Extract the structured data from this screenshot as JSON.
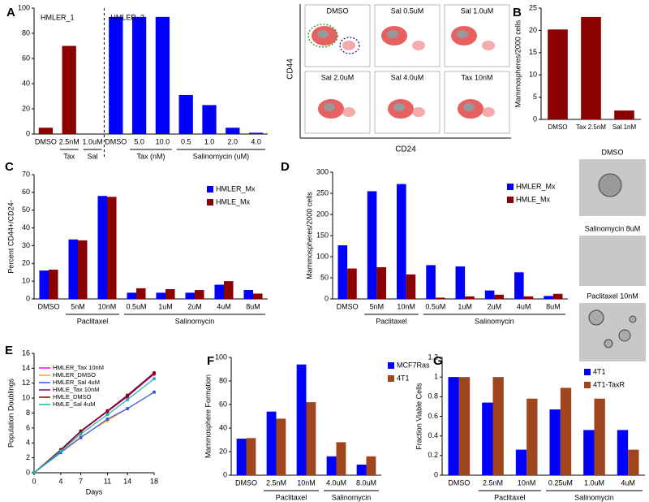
{
  "chart_data": [
    {
      "type": "bar",
      "panel": "A",
      "categories": [
        "DMSO",
        "2.5nM",
        "1.0uM",
        "DMSO",
        "5.0",
        "10.0",
        "0.5",
        "1.0",
        "2.0",
        "4.0"
      ],
      "values": [
        5,
        70,
        0,
        93,
        93,
        93,
        31,
        23,
        5,
        1
      ],
      "colors": [
        "#8b0000",
        "#8b0000",
        "#8b0000",
        "#0000ff",
        "#0000ff",
        "#0000ff",
        "#0000ff",
        "#0000ff",
        "#0000ff",
        "#0000ff"
      ],
      "ylim": [
        0,
        100
      ],
      "yticks": [
        0,
        20,
        40,
        60,
        80,
        100
      ],
      "sections": [
        {
          "label": "HMLER_1",
          "start": 0,
          "end": 2
        },
        {
          "label": "HMLER_2",
          "start": 3,
          "end": 9
        }
      ],
      "groups": [
        {
          "label": "Tax",
          "start": 1,
          "end": 1
        },
        {
          "label": "Sal",
          "start": 2,
          "end": 2
        },
        {
          "label": "Tax (nM)",
          "start": 4,
          "end": 5
        },
        {
          "label": "Salinomycin (uM)",
          "start": 6,
          "end": 9
        }
      ]
    },
    {
      "type": "bar",
      "panel": "B",
      "ylabel": "Mammospheres/2000 cells",
      "categories": [
        "DMSO",
        "Tax 2.5nM",
        "Sal 1nM"
      ],
      "values": [
        20.2,
        23,
        2
      ],
      "color": "#8b0000",
      "ylim": [
        0,
        25
      ],
      "yticks": [
        0,
        5,
        10,
        15,
        20,
        25
      ]
    },
    {
      "type": "bar",
      "panel": "C",
      "ylabel": "Percent CD44+/CD24-",
      "categories": [
        "DMSO",
        "5nM",
        "10nM",
        "0.5uM",
        "1uM",
        "2uM",
        "4uM",
        "8uM"
      ],
      "series": [
        {
          "name": "HMLER_Mx",
          "color": "#0000ff",
          "values": [
            16,
            33.5,
            58,
            3.5,
            3.5,
            3.5,
            8,
            5
          ]
        },
        {
          "name": "HMLE_Mx",
          "color": "#8b0000",
          "values": [
            16.5,
            33,
            57.5,
            6,
            5.5,
            5,
            10,
            3
          ]
        }
      ],
      "ylim": [
        0,
        70
      ],
      "yticks": [
        0,
        10,
        20,
        30,
        40,
        50,
        60,
        70
      ],
      "legend": "upper right",
      "groups": [
        {
          "label": "Paclitaxel",
          "start": 1,
          "end": 2
        },
        {
          "label": "Salinomycin",
          "start": 3,
          "end": 7
        }
      ]
    },
    {
      "type": "bar",
      "panel": "D",
      "ylabel": "Mammospheres/2000 cells",
      "categories": [
        "DMSO",
        "5nM",
        "10nM",
        "0.5uM",
        "1uM",
        "2uM",
        "4uM",
        "8uM"
      ],
      "series": [
        {
          "name": "HMLER_Mx",
          "color": "#0000ff",
          "values": [
            127,
            255,
            272,
            80,
            77,
            20,
            63,
            7
          ]
        },
        {
          "name": "HMLE_Mx",
          "color": "#8b0000",
          "values": [
            72,
            75,
            58,
            3,
            6,
            10,
            6,
            12
          ]
        }
      ],
      "ylim": [
        0,
        300
      ],
      "yticks": [
        0,
        50,
        100,
        150,
        200,
        250,
        300
      ],
      "legend": "upper right",
      "groups": [
        {
          "label": "Paclitaxel",
          "start": 1,
          "end": 2
        },
        {
          "label": "Salinomycin",
          "start": 3,
          "end": 7
        }
      ]
    },
    {
      "type": "line",
      "panel": "E",
      "xlabel": "Days",
      "ylabel": "Population Doublings",
      "x": [
        0,
        4,
        7,
        11,
        14,
        18
      ],
      "series": [
        {
          "name": "HMLER_Tax 10nM",
          "color": "#ff00ff",
          "values": [
            0,
            3,
            5.5,
            8.3,
            10.3,
            13.2
          ]
        },
        {
          "name": "HMLER_DMSO",
          "color": "#ffa500",
          "values": [
            0,
            2.8,
            4.8,
            7,
            8.6,
            10.8
          ]
        },
        {
          "name": "HMLER_Sal 4uM",
          "color": "#3355ff",
          "values": [
            0,
            2.7,
            4.7,
            7.2,
            8.6,
            10.8
          ]
        },
        {
          "name": "HMLE_Tax 10nM",
          "color": "#800080",
          "values": [
            0,
            3,
            5.5,
            8.2,
            10.2,
            13.3
          ]
        },
        {
          "name": "HMLE_DMSO",
          "color": "#8b0000",
          "values": [
            0,
            3.1,
            5.6,
            8.3,
            10.4,
            13.4
          ]
        },
        {
          "name": "HMLE_Sal 4uM",
          "color": "#20b2aa",
          "values": [
            0,
            2.9,
            5.2,
            7.8,
            9.8,
            12.6
          ]
        }
      ],
      "xlim": [
        0,
        18
      ],
      "xticks": [
        0,
        4,
        7,
        11,
        14,
        18
      ],
      "ylim": [
        0,
        16
      ],
      "yticks": [
        0,
        2,
        4,
        6,
        8,
        10,
        12,
        14,
        16
      ],
      "legend": "upper left"
    },
    {
      "type": "bar",
      "panel": "F",
      "ylabel": "Mammosphere Formation",
      "categories": [
        "DMSO",
        "2.5nM",
        "10nM",
        "4.0uM",
        "8.0uM"
      ],
      "series": [
        {
          "name": "MCF7Ras",
          "color": "#0000ff",
          "values": [
            31,
            54,
            94,
            16,
            9
          ]
        },
        {
          "name": "4T1",
          "color": "#a0461e",
          "values": [
            31.5,
            48,
            62,
            28,
            16
          ]
        }
      ],
      "ylim": [
        0,
        100
      ],
      "yticks": [
        0,
        20,
        40,
        60,
        80,
        100
      ],
      "legend": "right",
      "groups": [
        {
          "label": "Paclitaxel",
          "start": 1,
          "end": 2
        },
        {
          "label": "Salinomycin",
          "start": 3,
          "end": 4
        }
      ]
    },
    {
      "type": "bar",
      "panel": "G",
      "ylabel": "Fraction Viable Cells",
      "categories": [
        "DMSO",
        "2.5nM",
        "10nM",
        "0.25uM",
        "1.0uM",
        "4uM"
      ],
      "series": [
        {
          "name": "4T1",
          "color": "#0000ff",
          "values": [
            1,
            0.74,
            0.26,
            0.67,
            0.46,
            0.46
          ]
        },
        {
          "name": "4T1-TaxR",
          "color": "#a0461e",
          "values": [
            1,
            1,
            0.78,
            0.89,
            0.78,
            0.26
          ]
        }
      ],
      "ylim": [
        0,
        1.2
      ],
      "yticks": [
        0,
        0.2,
        0.4,
        0.6,
        0.8,
        1,
        1.2
      ],
      "legend": "upper right",
      "groups": [
        {
          "label": "Paclitaxel",
          "start": 1,
          "end": 2
        },
        {
          "label": "Salinomycin",
          "start": 3,
          "end": 5
        }
      ]
    }
  ],
  "flow": {
    "panels": [
      "DMSO",
      "Sal 0.5uM",
      "Sal 1.0uM",
      "Sal 2.0uM",
      "Sal 4.0uM",
      "Tax 10nM"
    ],
    "xlabel": "CD24",
    "ylabel": "CD44"
  },
  "micrographs": {
    "labels": [
      "DMSO",
      "Salinomycin 8uM",
      "Paclitaxel 10nM"
    ]
  }
}
